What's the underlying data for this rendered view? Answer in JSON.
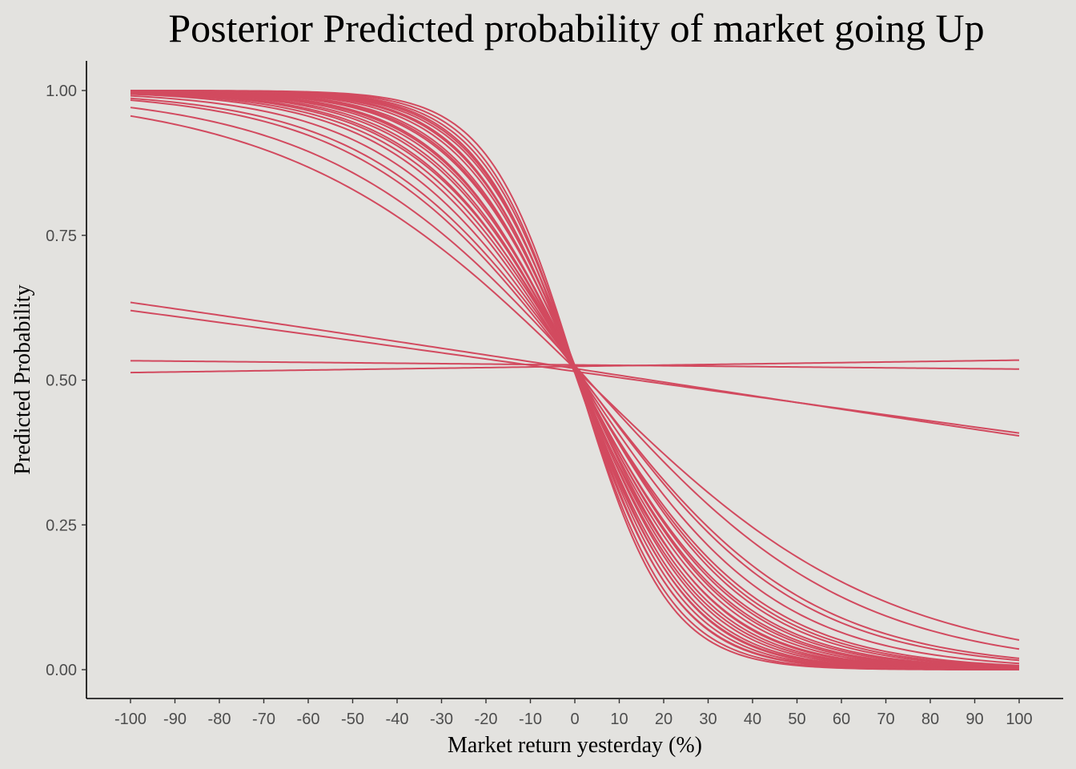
{
  "chart_data": {
    "type": "line",
    "title": "Posterior Predicted probability of market going Up",
    "xlabel": "Market return yesterday (%)",
    "ylabel": "Predicted Probability",
    "xlim": [
      -100,
      100
    ],
    "ylim": [
      0,
      1
    ],
    "x_ticks": [
      -100,
      -90,
      -80,
      -70,
      -60,
      -50,
      -40,
      -30,
      -20,
      -10,
      0,
      10,
      20,
      30,
      40,
      50,
      60,
      70,
      80,
      90,
      100
    ],
    "y_ticks": [
      "0.00",
      "0.25",
      "0.50",
      "0.75",
      "1.00"
    ],
    "y_tick_values": [
      0,
      0.25,
      0.5,
      0.75,
      1
    ],
    "grid": false,
    "legend": "none",
    "line_color": "#d24a5f",
    "background": "#e3e2df",
    "model": "logistic: p(x) = 1 / (1 + exp(-(intercept + slope * x))), one curve per posterior draw",
    "series": [
      {
        "intercept": 0.08,
        "slope": -0.1
      },
      {
        "intercept": 0.07,
        "slope": -0.095
      },
      {
        "intercept": 0.09,
        "slope": -0.09
      },
      {
        "intercept": 0.05,
        "slope": -0.088
      },
      {
        "intercept": 0.08,
        "slope": -0.085
      },
      {
        "intercept": 0.1,
        "slope": -0.082
      },
      {
        "intercept": 0.06,
        "slope": -0.08
      },
      {
        "intercept": 0.08,
        "slope": -0.078
      },
      {
        "intercept": 0.09,
        "slope": -0.075
      },
      {
        "intercept": 0.07,
        "slope": -0.072
      },
      {
        "intercept": 0.08,
        "slope": -0.07
      },
      {
        "intercept": 0.1,
        "slope": -0.068
      },
      {
        "intercept": 0.05,
        "slope": -0.066
      },
      {
        "intercept": 0.08,
        "slope": -0.064
      },
      {
        "intercept": 0.09,
        "slope": -0.062
      },
      {
        "intercept": 0.07,
        "slope": -0.06
      },
      {
        "intercept": 0.08,
        "slope": -0.058
      },
      {
        "intercept": 0.06,
        "slope": -0.056
      },
      {
        "intercept": 0.09,
        "slope": -0.054
      },
      {
        "intercept": 0.08,
        "slope": -0.052
      },
      {
        "intercept": 0.07,
        "slope": -0.05
      },
      {
        "intercept": 0.08,
        "slope": -0.046
      },
      {
        "intercept": 0.09,
        "slope": -0.042
      },
      {
        "intercept": 0.08,
        "slope": -0.04
      },
      {
        "intercept": 0.1,
        "slope": -0.034
      },
      {
        "intercept": 0.08,
        "slope": -0.03
      },
      {
        "intercept": 0.08,
        "slope": -0.0047
      },
      {
        "intercept": 0.06,
        "slope": -0.0043
      },
      {
        "intercept": 0.105,
        "slope": -0.00029
      },
      {
        "intercept": 0.095,
        "slope": 0.00043
      }
    ]
  }
}
